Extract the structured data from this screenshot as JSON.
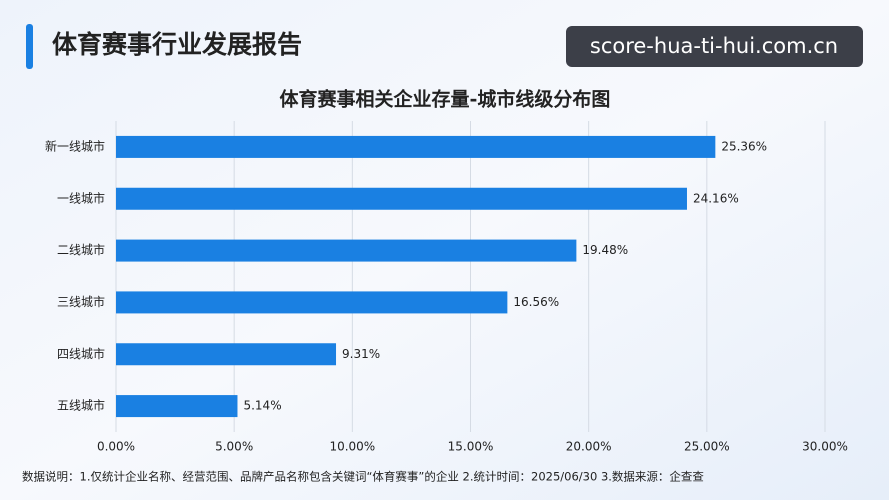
{
  "header": {
    "title": "体育赛事行业发展报告"
  },
  "watermark": "score-hua-ti-hui.com.cn",
  "chart_data": {
    "type": "hbar",
    "title": "体育赛事相关企业存量-城市线级分布图",
    "categories": [
      "新一线城市",
      "一线城市",
      "二线城市",
      "三线城市",
      "四线城市",
      "五线城市"
    ],
    "values": [
      25.36,
      24.16,
      19.48,
      16.56,
      9.31,
      5.14
    ],
    "value_labels": [
      "25.36%",
      "24.16%",
      "19.48%",
      "16.56%",
      "9.31%",
      "5.14%"
    ],
    "color": "#1a80e2",
    "xlim": [
      0,
      30
    ],
    "xticks": [
      {
        "value": 0,
        "label": "0.00%"
      },
      {
        "value": 5,
        "label": "5.00%"
      },
      {
        "value": 10,
        "label": "10.00%"
      },
      {
        "value": 15,
        "label": "15.00%"
      },
      {
        "value": 20,
        "label": "20.00%"
      },
      {
        "value": 25,
        "label": "25.00%"
      },
      {
        "value": 30,
        "label": "30.00%"
      }
    ],
    "grid": true,
    "footnote": "数据说明：1.仅统计企业名称、经营范围、品牌产品名称包含关键词“体育赛事”的企业  2.统计时间：2025/06/30  3.数据来源：企查查"
  }
}
